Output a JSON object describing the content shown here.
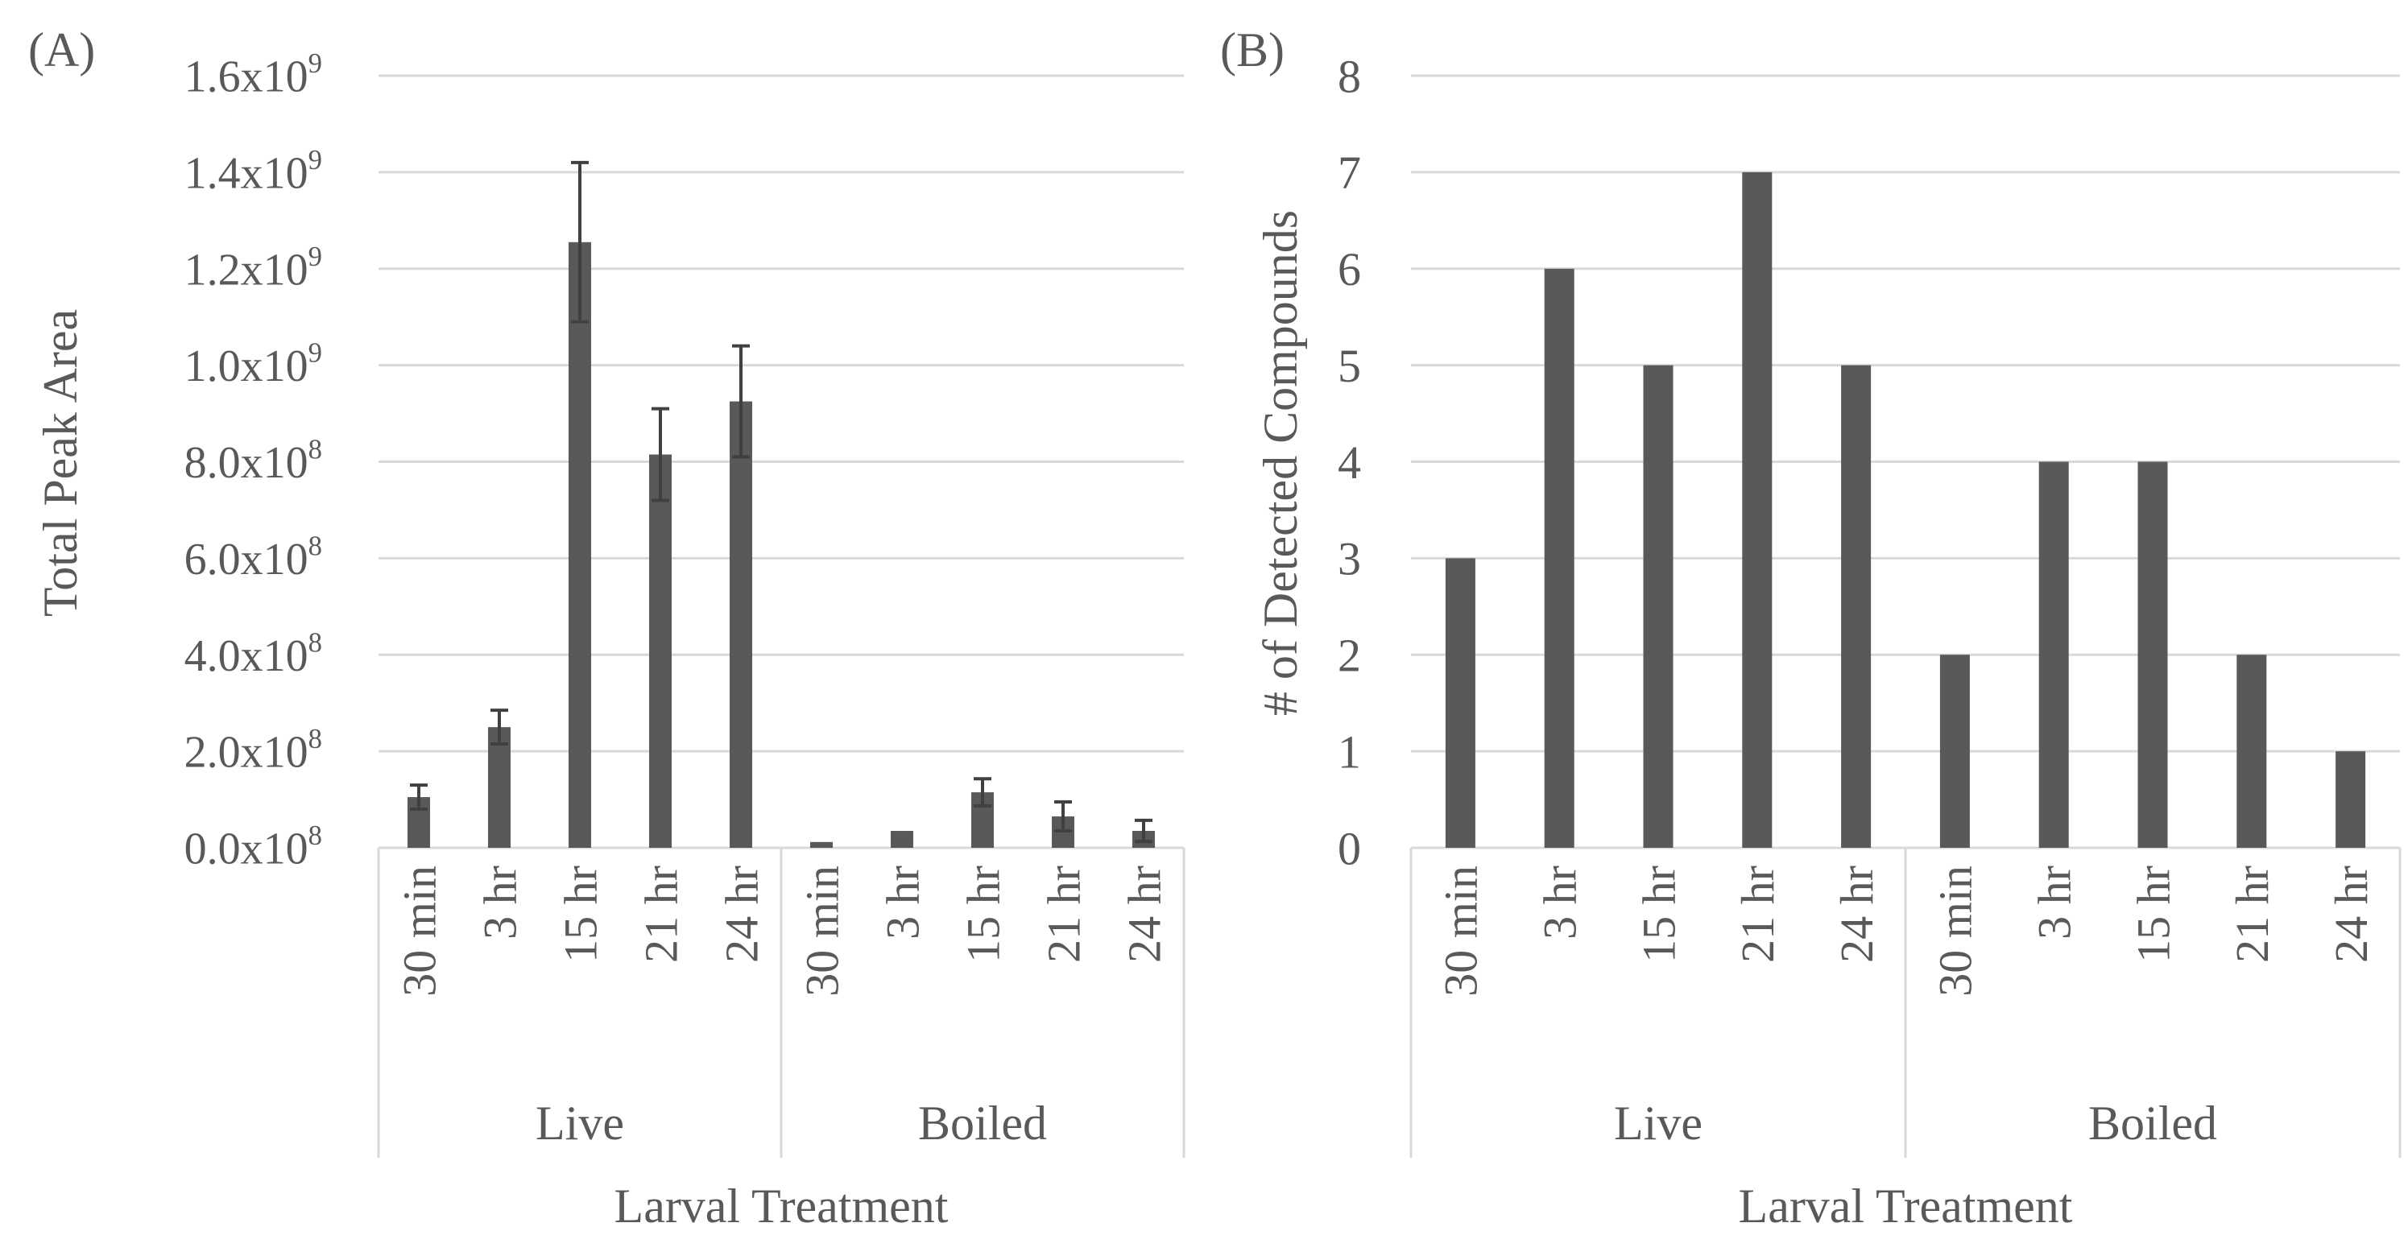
{
  "chart_data": [
    {
      "type": "bar",
      "panel_label": "(A)",
      "ylabel": "Total Peak Area",
      "xlabel": "Larval Treatment",
      "ylim": [
        0,
        1600000000
      ],
      "y_ticks": [
        {
          "value": 0,
          "base": "0.0x10",
          "exp": "8"
        },
        {
          "value": 200000000,
          "base": "2.0x10",
          "exp": "8"
        },
        {
          "value": 400000000,
          "base": "4.0x10",
          "exp": "8"
        },
        {
          "value": 600000000,
          "base": "6.0x10",
          "exp": "8"
        },
        {
          "value": 800000000,
          "base": "8.0x10",
          "exp": "8"
        },
        {
          "value": 1000000000,
          "base": "1.0x10",
          "exp": "9"
        },
        {
          "value": 1200000000,
          "base": "1.2x10",
          "exp": "9"
        },
        {
          "value": 1400000000,
          "base": "1.4x10",
          "exp": "9"
        },
        {
          "value": 1600000000,
          "base": "1.6x10",
          "exp": "9"
        }
      ],
      "groups": [
        "Live",
        "Boiled"
      ],
      "categories": [
        "30 min",
        "3 hr",
        "15 hr",
        "21 hr",
        "24 hr",
        "30 min",
        "3 hr",
        "15 hr",
        "21 hr",
        "24 hr"
      ],
      "values": [
        105000000,
        250000000,
        1255000000,
        815000000,
        925000000,
        12000000,
        35000000,
        115000000,
        65000000,
        35000000
      ],
      "errors": [
        25000000,
        35000000,
        165000000,
        95000000,
        115000000,
        0,
        0,
        28000000,
        30000000,
        22000000
      ],
      "grid": true
    },
    {
      "type": "bar",
      "panel_label": "(B)",
      "ylabel": "# of Detected Compounds",
      "xlabel": "Larval Treatment",
      "ylim": [
        0,
        8
      ],
      "y_ticks": [
        {
          "value": 0,
          "base": "0",
          "exp": ""
        },
        {
          "value": 1,
          "base": "1",
          "exp": ""
        },
        {
          "value": 2,
          "base": "2",
          "exp": ""
        },
        {
          "value": 3,
          "base": "3",
          "exp": ""
        },
        {
          "value": 4,
          "base": "4",
          "exp": ""
        },
        {
          "value": 5,
          "base": "5",
          "exp": ""
        },
        {
          "value": 6,
          "base": "6",
          "exp": ""
        },
        {
          "value": 7,
          "base": "7",
          "exp": ""
        },
        {
          "value": 8,
          "base": "8",
          "exp": ""
        }
      ],
      "groups": [
        "Live",
        "Boiled"
      ],
      "categories": [
        "30 min",
        "3 hr",
        "15 hr",
        "21 hr",
        "24 hr",
        "30 min",
        "3 hr",
        "15 hr",
        "21 hr",
        "24 hr"
      ],
      "values": [
        3,
        6,
        5,
        7,
        5,
        2,
        4,
        4,
        2,
        1
      ],
      "errors": [],
      "grid": true
    }
  ]
}
